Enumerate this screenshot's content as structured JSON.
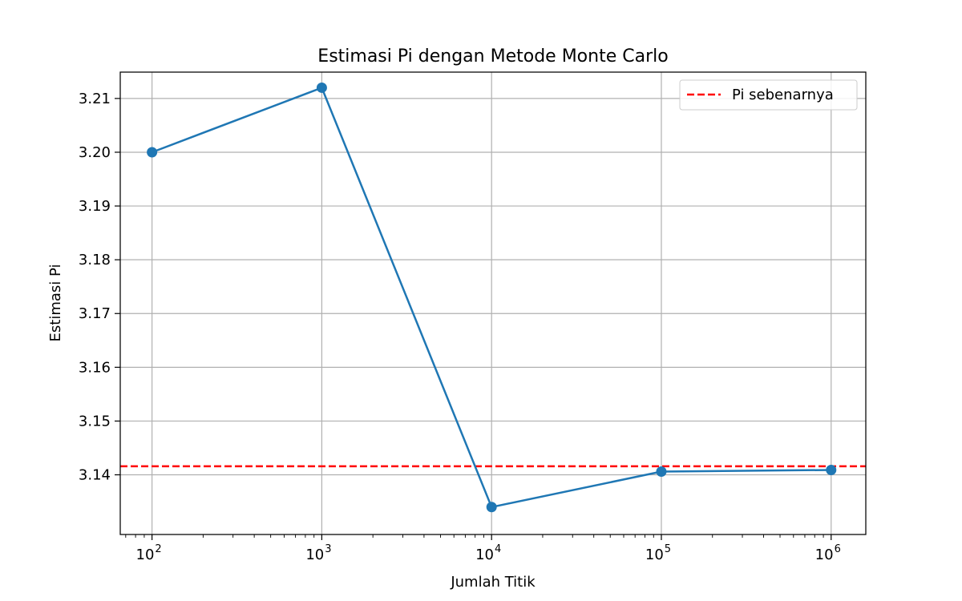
{
  "chart_data": {
    "type": "line",
    "title": "Estimasi Pi dengan Metode Monte Carlo",
    "xlabel": "Jumlah Titik",
    "ylabel": "Estimasi Pi",
    "x_scale": "log",
    "x_base": 10,
    "xlim": [
      65,
      1600000
    ],
    "ylim": [
      3.1289,
      3.2149
    ],
    "x_ticks": [
      100,
      1000,
      10000,
      100000,
      1000000
    ],
    "x_tick_exponents": [
      "2",
      "3",
      "4",
      "5",
      "6"
    ],
    "y_ticks": [
      3.14,
      3.15,
      3.16,
      3.17,
      3.18,
      3.19,
      3.2,
      3.21
    ],
    "y_tick_labels": [
      "3.14",
      "3.15",
      "3.16",
      "3.17",
      "3.18",
      "3.19",
      "3.20",
      "3.21"
    ],
    "grid": true,
    "series": [
      {
        "color": "#1f77b4",
        "marker": "circle",
        "x": [
          100,
          1000,
          10000,
          100000,
          1000000
        ],
        "y": [
          3.2,
          3.212,
          3.134,
          3.1406,
          3.1409
        ]
      }
    ],
    "reference_line": {
      "name": "Pi sebenarnya",
      "y": 3.14159,
      "color": "#ff0000",
      "style": "dashed"
    },
    "legend": {
      "position": "top-right",
      "entries": [
        "Pi sebenarnya"
      ]
    }
  }
}
